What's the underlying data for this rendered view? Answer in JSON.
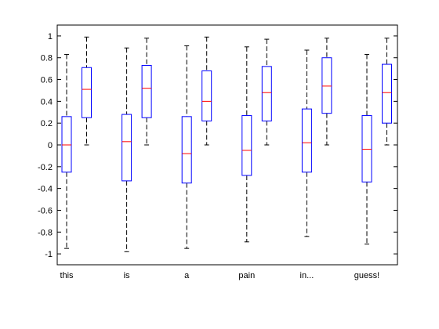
{
  "chart_data": {
    "type": "boxplot",
    "categories": [
      "this",
      "is",
      "a",
      "pain",
      "in...",
      "guess!"
    ],
    "ylim": [
      -1.1,
      1.1
    ],
    "yticks": [
      "-1",
      "-0.8",
      "-0.6",
      "-0.4",
      "-0.2",
      "0",
      "0.2",
      "0.4",
      "0.6",
      "0.8",
      "1"
    ],
    "grid": false,
    "colors": {
      "box": "#0000ff",
      "median": "#ff0000",
      "whisker": "#000000",
      "axis": "#000000"
    },
    "series": [
      {
        "boxes": [
          {
            "min": -0.95,
            "q1": -0.25,
            "median": 0.0,
            "q3": 0.26,
            "max": 0.83
          },
          {
            "min": -0.98,
            "q1": -0.33,
            "median": 0.03,
            "q3": 0.28,
            "max": 0.89
          },
          {
            "min": -0.95,
            "q1": -0.35,
            "median": -0.08,
            "q3": 0.26,
            "max": 0.91
          },
          {
            "min": -0.89,
            "q1": -0.28,
            "median": -0.05,
            "q3": 0.27,
            "max": 0.9
          },
          {
            "min": -0.84,
            "q1": -0.25,
            "median": 0.02,
            "q3": 0.33,
            "max": 0.87
          },
          {
            "min": -0.91,
            "q1": -0.34,
            "median": -0.04,
            "q3": 0.27,
            "max": 0.83
          }
        ]
      },
      {
        "boxes": [
          {
            "min": 0.0,
            "q1": 0.25,
            "median": 0.51,
            "q3": 0.71,
            "max": 0.99
          },
          {
            "min": 0.0,
            "q1": 0.25,
            "median": 0.52,
            "q3": 0.73,
            "max": 0.98
          },
          {
            "min": 0.0,
            "q1": 0.22,
            "median": 0.4,
            "q3": 0.68,
            "max": 0.99
          },
          {
            "min": 0.0,
            "q1": 0.22,
            "median": 0.48,
            "q3": 0.72,
            "max": 0.97
          },
          {
            "min": 0.0,
            "q1": 0.29,
            "median": 0.54,
            "q3": 0.8,
            "max": 0.98
          },
          {
            "min": 0.0,
            "q1": 0.2,
            "median": 0.48,
            "q3": 0.74,
            "max": 0.98
          }
        ]
      }
    ]
  }
}
